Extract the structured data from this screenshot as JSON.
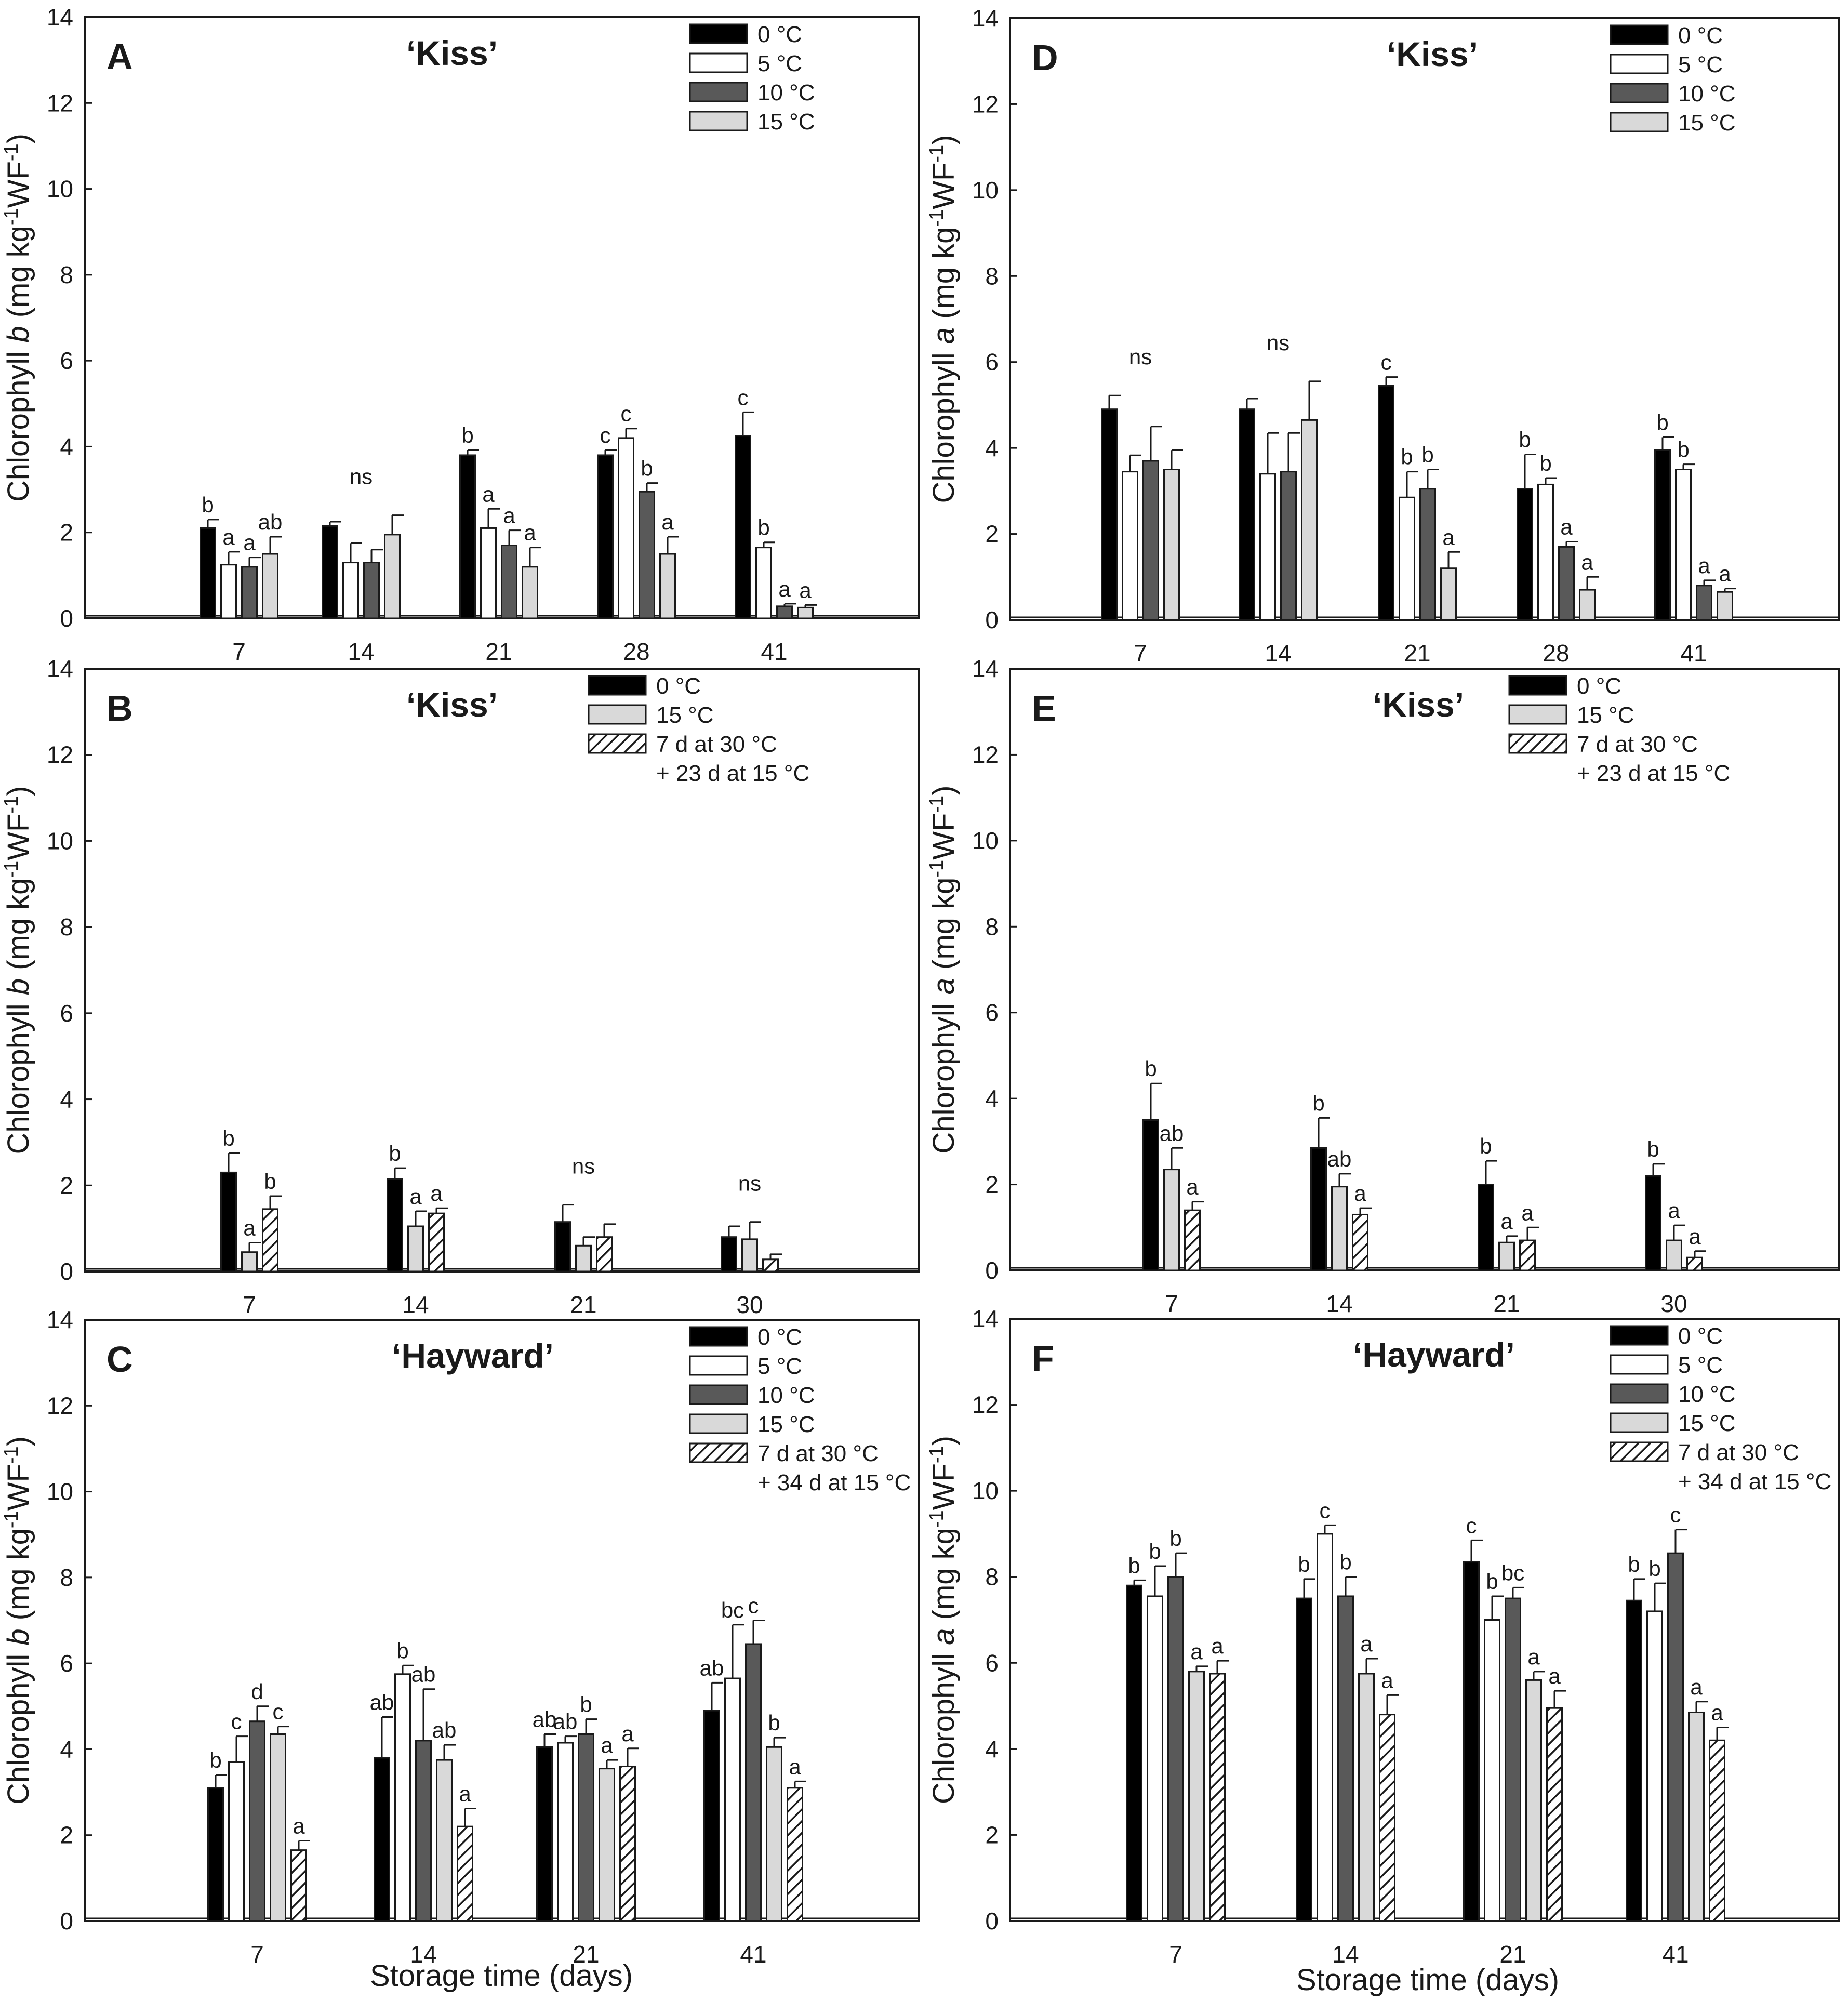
{
  "figure": {
    "x_axis_label": "Storage time (days)"
  },
  "chart_data": [
    {
      "panel": "A",
      "type": "bar",
      "title": "‘Kiss’",
      "ylabel_parts": [
        "Chlorophyll ",
        "b",
        " (mg kg",
        "-1",
        "WF",
        "-1",
        ")"
      ],
      "ylabel": "Chlorophyll b (mg kg-1WF-1)",
      "xlabel": "",
      "ylim": [
        0,
        14
      ],
      "yticks": [
        0,
        2,
        4,
        6,
        8,
        10,
        12,
        14
      ],
      "categories": [
        "7",
        "14",
        "21",
        "28",
        "41"
      ],
      "series": [
        {
          "name": "0 °C",
          "style": "black",
          "values": [
            2.1,
            2.15,
            3.8,
            3.8,
            4.25
          ],
          "errors": [
            0.2,
            0.1,
            0.12,
            0.12,
            0.55
          ]
        },
        {
          "name": "5 °C",
          "style": "white",
          "values": [
            1.25,
            1.3,
            2.1,
            4.2,
            1.65
          ],
          "errors": [
            0.3,
            0.45,
            0.45,
            0.22,
            0.12
          ]
        },
        {
          "name": "10 °C",
          "style": "darkgray",
          "values": [
            1.2,
            1.3,
            1.7,
            2.95,
            0.28
          ],
          "errors": [
            0.22,
            0.3,
            0.35,
            0.2,
            0.06
          ]
        },
        {
          "name": "15 °C",
          "style": "lightgray",
          "values": [
            1.5,
            1.95,
            1.2,
            1.5,
            0.25
          ],
          "errors": [
            0.4,
            0.45,
            0.45,
            0.4,
            0.06
          ]
        }
      ],
      "significance": [
        {
          "category": "7",
          "labels": [
            "b",
            "a",
            "a",
            "ab"
          ]
        },
        {
          "category": "14",
          "ns": "ns"
        },
        {
          "category": "21",
          "labels": [
            "b",
            "a",
            "a",
            "a"
          ]
        },
        {
          "category": "28",
          "labels": [
            "c",
            "c",
            "b",
            "a"
          ]
        },
        {
          "category": "41",
          "labels": [
            "c",
            "b",
            "a",
            "a"
          ]
        }
      ]
    },
    {
      "panel": "B",
      "type": "bar",
      "title": "‘Kiss’",
      "ylabel_parts": [
        "Chlorophyll ",
        "b",
        " (mg kg",
        "-1",
        "WF",
        "-1",
        ")"
      ],
      "ylabel": "Chlorophyll b (mg kg-1WF-1)",
      "xlabel": "",
      "ylim": [
        0,
        14
      ],
      "yticks": [
        0,
        2,
        4,
        6,
        8,
        10,
        12,
        14
      ],
      "categories": [
        "7",
        "14",
        "21",
        "30"
      ],
      "series": [
        {
          "name": " 0 °C",
          "style": "black",
          "values": [
            2.3,
            2.15,
            1.15,
            0.8
          ],
          "errors": [
            0.45,
            0.25,
            0.4,
            0.25
          ]
        },
        {
          "name": "15 °C",
          "style": "lightgray",
          "values": [
            0.45,
            1.05,
            0.6,
            0.75
          ],
          "errors": [
            0.22,
            0.35,
            0.2,
            0.4
          ]
        },
        {
          "name": "7 d at 30 °C\n+ 23 d at 15 °C",
          "style": "hatch",
          "values": [
            1.45,
            1.35,
            0.8,
            0.28
          ],
          "errors": [
            0.3,
            0.12,
            0.3,
            0.12
          ]
        }
      ],
      "significance": [
        {
          "category": "7",
          "labels": [
            "b",
            "a",
            "b"
          ]
        },
        {
          "category": "14",
          "labels": [
            "b",
            "a",
            "a"
          ]
        },
        {
          "category": "21",
          "ns": "ns"
        },
        {
          "category": "30",
          "ns": "ns"
        }
      ]
    },
    {
      "panel": "C",
      "type": "bar",
      "title": "‘Hayward’",
      "ylabel_parts": [
        "Chlorophyll ",
        "b",
        " (mg kg",
        "-1",
        "WF",
        "-1",
        ")"
      ],
      "ylabel": "Chlorophyll b (mg kg-1WF-1)",
      "xlabel": "Storage time (days)",
      "ylim": [
        0,
        14
      ],
      "yticks": [
        0,
        2,
        4,
        6,
        8,
        10,
        12,
        14
      ],
      "categories": [
        "7",
        "14",
        "21",
        "41"
      ],
      "series": [
        {
          "name": "0 °C",
          "style": "black",
          "values": [
            3.1,
            3.8,
            4.05,
            4.9
          ],
          "errors": [
            0.3,
            0.95,
            0.3,
            0.65
          ]
        },
        {
          "name": "5 °C",
          "style": "white",
          "values": [
            3.7,
            5.75,
            4.15,
            5.65
          ],
          "errors": [
            0.6,
            0.2,
            0.15,
            1.25
          ]
        },
        {
          "name": "10 °C",
          "style": "darkgray",
          "values": [
            4.65,
            4.2,
            4.35,
            6.45
          ],
          "errors": [
            0.35,
            1.2,
            0.35,
            0.55
          ]
        },
        {
          "name": "15 °C",
          "style": "lightgray",
          "values": [
            4.35,
            3.75,
            3.55,
            4.05
          ],
          "errors": [
            0.18,
            0.35,
            0.2,
            0.22
          ]
        },
        {
          "name": "7 d at 30 °C\n+ 34 d at 15 °C",
          "style": "hatch",
          "values": [
            1.65,
            2.2,
            3.6,
            3.1
          ],
          "errors": [
            0.22,
            0.42,
            0.42,
            0.15
          ]
        }
      ],
      "significance": [
        {
          "category": "7",
          "labels": [
            "b",
            "c",
            "d",
            "c",
            "a"
          ]
        },
        {
          "category": "14",
          "labels": [
            "ab",
            "b",
            "ab",
            "ab",
            "a"
          ]
        },
        {
          "category": "21",
          "labels": [
            "ab",
            "ab",
            "b",
            "a",
            "a"
          ]
        },
        {
          "category": "41",
          "labels": [
            "ab",
            "bc",
            "c",
            "b",
            "a"
          ]
        }
      ]
    },
    {
      "panel": "D",
      "type": "bar",
      "title": "‘Kiss’",
      "ylabel_parts": [
        "Chlorophyll ",
        "a",
        " (mg kg",
        "-1",
        "WF",
        "-1",
        ")"
      ],
      "ylabel": "Chlorophyll a (mg kg-1WF-1)",
      "xlabel": "",
      "ylim": [
        0,
        14
      ],
      "yticks": [
        0,
        2,
        4,
        6,
        8,
        10,
        12,
        14
      ],
      "categories": [
        "7",
        "14",
        "21",
        "28",
        "41"
      ],
      "series": [
        {
          "name": "0 °C",
          "style": "black",
          "values": [
            4.9,
            4.9,
            5.45,
            3.05,
            3.95
          ],
          "errors": [
            0.32,
            0.25,
            0.2,
            0.8,
            0.3
          ]
        },
        {
          "name": "5 °C",
          "style": "white",
          "values": [
            3.45,
            3.4,
            2.85,
            3.15,
            3.5
          ],
          "errors": [
            0.38,
            0.95,
            0.6,
            0.15,
            0.12
          ]
        },
        {
          "name": "10 °C",
          "style": "darkgray",
          "values": [
            3.7,
            3.45,
            3.05,
            1.7,
            0.8
          ],
          "errors": [
            0.8,
            0.9,
            0.45,
            0.12,
            0.12
          ]
        },
        {
          "name": "15 °C",
          "style": "lightgray",
          "values": [
            3.5,
            4.65,
            1.2,
            0.7,
            0.65
          ],
          "errors": [
            0.45,
            0.9,
            0.38,
            0.3,
            0.08
          ]
        }
      ],
      "significance": [
        {
          "category": "7",
          "ns": "ns"
        },
        {
          "category": "14",
          "ns": "ns"
        },
        {
          "category": "21",
          "labels": [
            "c",
            "b",
            "b",
            "a"
          ]
        },
        {
          "category": "28",
          "labels": [
            "b",
            "b",
            "a",
            "a"
          ]
        },
        {
          "category": "41",
          "labels": [
            "b",
            "b",
            "a",
            "a"
          ]
        }
      ]
    },
    {
      "panel": "E",
      "type": "bar",
      "title": "‘Kiss’",
      "ylabel_parts": [
        "Chlorophyll ",
        "a",
        " (mg kg",
        "-1",
        "WF",
        "-1",
        ")"
      ],
      "ylabel": "Chlorophyll a (mg kg-1WF-1)",
      "xlabel": "",
      "ylim": [
        0,
        14
      ],
      "yticks": [
        0,
        2,
        4,
        6,
        8,
        10,
        12,
        14
      ],
      "categories": [
        "7",
        "14",
        "21",
        "30"
      ],
      "series": [
        {
          "name": "0 °C",
          "style": "black",
          "values": [
            3.5,
            2.85,
            2.0,
            2.2
          ],
          "errors": [
            0.85,
            0.7,
            0.55,
            0.28
          ]
        },
        {
          "name": "15 °C",
          "style": "lightgray",
          "values": [
            2.35,
            1.95,
            0.65,
            0.7
          ],
          "errors": [
            0.5,
            0.3,
            0.15,
            0.35
          ]
        },
        {
          "name": "7 d at 30 °C\n+ 23 d at 15 °C",
          "style": "hatch",
          "values": [
            1.4,
            1.3,
            0.7,
            0.3
          ],
          "errors": [
            0.2,
            0.15,
            0.3,
            0.15
          ]
        }
      ],
      "significance": [
        {
          "category": "7",
          "labels": [
            "b",
            "ab",
            "a"
          ]
        },
        {
          "category": "14",
          "labels": [
            "b",
            "ab",
            "a"
          ]
        },
        {
          "category": "21",
          "labels": [
            "b",
            "a",
            "a"
          ]
        },
        {
          "category": "30",
          "labels": [
            "b",
            "a",
            "a"
          ]
        }
      ]
    },
    {
      "panel": "F",
      "type": "bar",
      "title": "‘Hayward’",
      "ylabel_parts": [
        "Chlorophyll ",
        "a",
        " (mg kg",
        "-1",
        "WF",
        "-1",
        ")"
      ],
      "ylabel": "Chlorophyll a (mg kg-1WF-1)",
      "xlabel": "Storage time (days)",
      "ylim": [
        0,
        14
      ],
      "yticks": [
        0,
        2,
        4,
        6,
        8,
        10,
        12,
        14
      ],
      "categories": [
        "7",
        "14",
        "21",
        "41"
      ],
      "series": [
        {
          "name": "0 °C",
          "style": "black",
          "values": [
            7.8,
            7.5,
            8.35,
            7.45
          ],
          "errors": [
            0.12,
            0.45,
            0.5,
            0.5
          ]
        },
        {
          "name": "5 °C",
          "style": "white",
          "values": [
            7.55,
            9.0,
            7.0,
            7.2
          ],
          "errors": [
            0.7,
            0.2,
            0.55,
            0.65
          ]
        },
        {
          "name": "10 °C",
          "style": "darkgray",
          "values": [
            8.0,
            7.55,
            7.5,
            8.55
          ],
          "errors": [
            0.55,
            0.45,
            0.25,
            0.55
          ]
        },
        {
          "name": "15 °C",
          "style": "lightgray",
          "values": [
            5.8,
            5.75,
            5.6,
            4.85
          ],
          "errors": [
            0.12,
            0.35,
            0.2,
            0.25
          ]
        },
        {
          "name": "7 d at 30 °C\n+ 34 d at 15 °C",
          "style": "hatch",
          "values": [
            5.75,
            4.8,
            4.95,
            4.2
          ],
          "errors": [
            0.3,
            0.45,
            0.4,
            0.3
          ]
        }
      ],
      "significance": [
        {
          "category": "7",
          "labels": [
            "b",
            "b",
            "b",
            "a",
            "a"
          ]
        },
        {
          "category": "14",
          "labels": [
            "b",
            "c",
            "b",
            "a",
            "a"
          ]
        },
        {
          "category": "21",
          "labels": [
            "c",
            "b",
            "bc",
            "a",
            "a"
          ]
        },
        {
          "category": "41",
          "labels": [
            "b",
            "b",
            "c",
            "a",
            "a"
          ]
        }
      ]
    }
  ]
}
